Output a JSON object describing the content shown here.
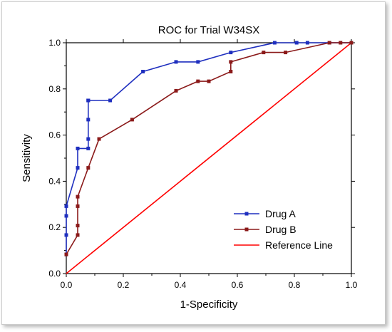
{
  "chart_data": {
    "type": "line",
    "title": "ROC for Trial W34SX",
    "xlabel": "1-Specificity",
    "ylabel": "Sensitivity",
    "xlim": [
      0,
      1
    ],
    "ylim": [
      0,
      1
    ],
    "xticks": [
      "0.0",
      "0.2",
      "0.4",
      "0.6",
      "0.8",
      "1.0"
    ],
    "yticks": [
      "0.0",
      "0.2",
      "0.4",
      "0.6",
      "0.8",
      "1.0"
    ],
    "legend_position": "bottom-right",
    "grid": false,
    "series": [
      {
        "name": "Drug A",
        "color": "#1f2fbf",
        "marker": "square",
        "x": [
          0,
          0,
          0,
          0,
          0.04,
          0.04,
          0.077,
          0.077,
          0.077,
          0.077,
          0.077,
          0.154,
          0.269,
          0.385,
          0.462,
          0.577,
          0.731,
          0.808,
          0.846,
          0.923,
          1.0
        ],
        "y": [
          0.083,
          0.167,
          0.25,
          0.292,
          0.458,
          0.542,
          0.542,
          0.583,
          0.667,
          0.75,
          0.75,
          0.75,
          0.875,
          0.917,
          0.917,
          0.958,
          1.0,
          1.0,
          1.0,
          1.0,
          1.0
        ]
      },
      {
        "name": "Drug B",
        "color": "#8b1a1a",
        "marker": "square",
        "x": [
          0,
          0.04,
          0.04,
          0.04,
          0.04,
          0.077,
          0.115,
          0.231,
          0.385,
          0.462,
          0.5,
          0.577,
          0.577,
          0.692,
          0.769,
          0.923,
          0.962,
          1.0
        ],
        "y": [
          0.083,
          0.167,
          0.208,
          0.292,
          0.333,
          0.458,
          0.583,
          0.667,
          0.792,
          0.833,
          0.833,
          0.875,
          0.917,
          0.958,
          0.958,
          1.0,
          1.0,
          1.0
        ]
      },
      {
        "name": "Reference Line",
        "color": "#ff0000",
        "marker": "none",
        "x": [
          0,
          1
        ],
        "y": [
          0,
          1
        ]
      }
    ]
  }
}
